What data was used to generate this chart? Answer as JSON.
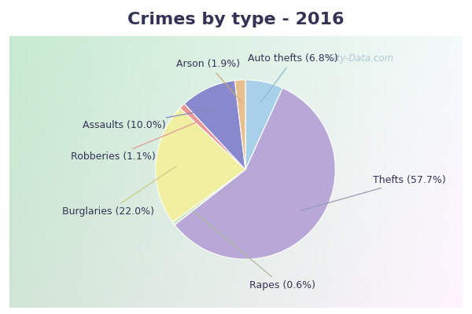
{
  "title": "Crimes by type - 2016",
  "labels": [
    "Thefts",
    "Burglaries",
    "Assaults",
    "Auto thefts",
    "Arson",
    "Robberies",
    "Rapes"
  ],
  "values": [
    57.7,
    22.0,
    10.0,
    6.8,
    1.9,
    1.1,
    0.6
  ],
  "colors": [
    "#b8a8d8",
    "#f0f0a0",
    "#8888cc",
    "#a8d0e8",
    "#e8c090",
    "#e89898",
    "#d0e8c0"
  ],
  "label_texts": [
    "Thefts (57.7%)",
    "Burglaries (22.0%)",
    "Assaults (10.0%)",
    "Auto thefts (6.8%)",
    "Arson (1.9%)",
    "Robberies (1.1%)",
    "Rapes (0.6%)"
  ],
  "title_bg": "#00e8f8",
  "title_fontsize": 16,
  "watermark": "City-Data.com",
  "label_fontsize": 9,
  "text_color": "#333355"
}
